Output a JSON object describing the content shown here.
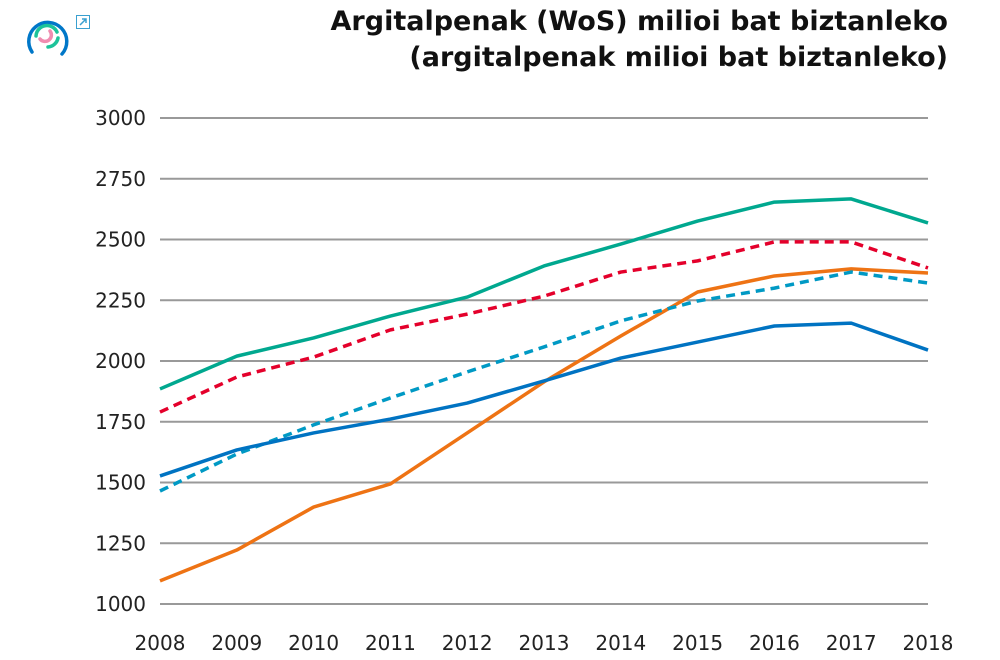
{
  "chart_data": {
    "type": "line",
    "title": "Argitalpenak (WoS) milioi bat biztanleko",
    "subtitle": "(argitalpenak milioi bat biztanleko)",
    "xlabel": "",
    "ylabel": "",
    "x": [
      2008,
      2009,
      2010,
      2011,
      2012,
      2013,
      2014,
      2015,
      2016,
      2017,
      2018
    ],
    "ylim": [
      1000,
      3000
    ],
    "yticks": [
      1000,
      1250,
      1500,
      1750,
      2000,
      2250,
      2500,
      2750,
      3000
    ],
    "grid": true,
    "legend": "none",
    "series": [
      {
        "color": "#00a88f",
        "style": "solid",
        "values": [
          1885,
          2020,
          2095,
          2185,
          2263,
          2391,
          2481,
          2576,
          2654,
          2667,
          2568
        ]
      },
      {
        "color": "#e4002b",
        "style": "dashed",
        "values": [
          1790,
          1934,
          2016,
          2128,
          2193,
          2267,
          2366,
          2412,
          2490,
          2490,
          2383
        ]
      },
      {
        "color": "#ee7314",
        "style": "solid",
        "values": [
          1095,
          1222,
          1399,
          1494,
          1704,
          1914,
          2103,
          2284,
          2350,
          2379,
          2362
        ]
      },
      {
        "color": "#0099c4",
        "style": "dashed",
        "values": [
          1465,
          1617,
          1737,
          1848,
          1955,
          2058,
          2165,
          2247,
          2300,
          2366,
          2321
        ]
      },
      {
        "color": "#0073c2",
        "style": "solid",
        "values": [
          1527,
          1634,
          1704,
          1761,
          1827,
          1918,
          2012,
          2078,
          2144,
          2156,
          2045
        ]
      }
    ]
  },
  "icons": {
    "logo": "circular-rings-logo",
    "external": "external-link-icon"
  }
}
